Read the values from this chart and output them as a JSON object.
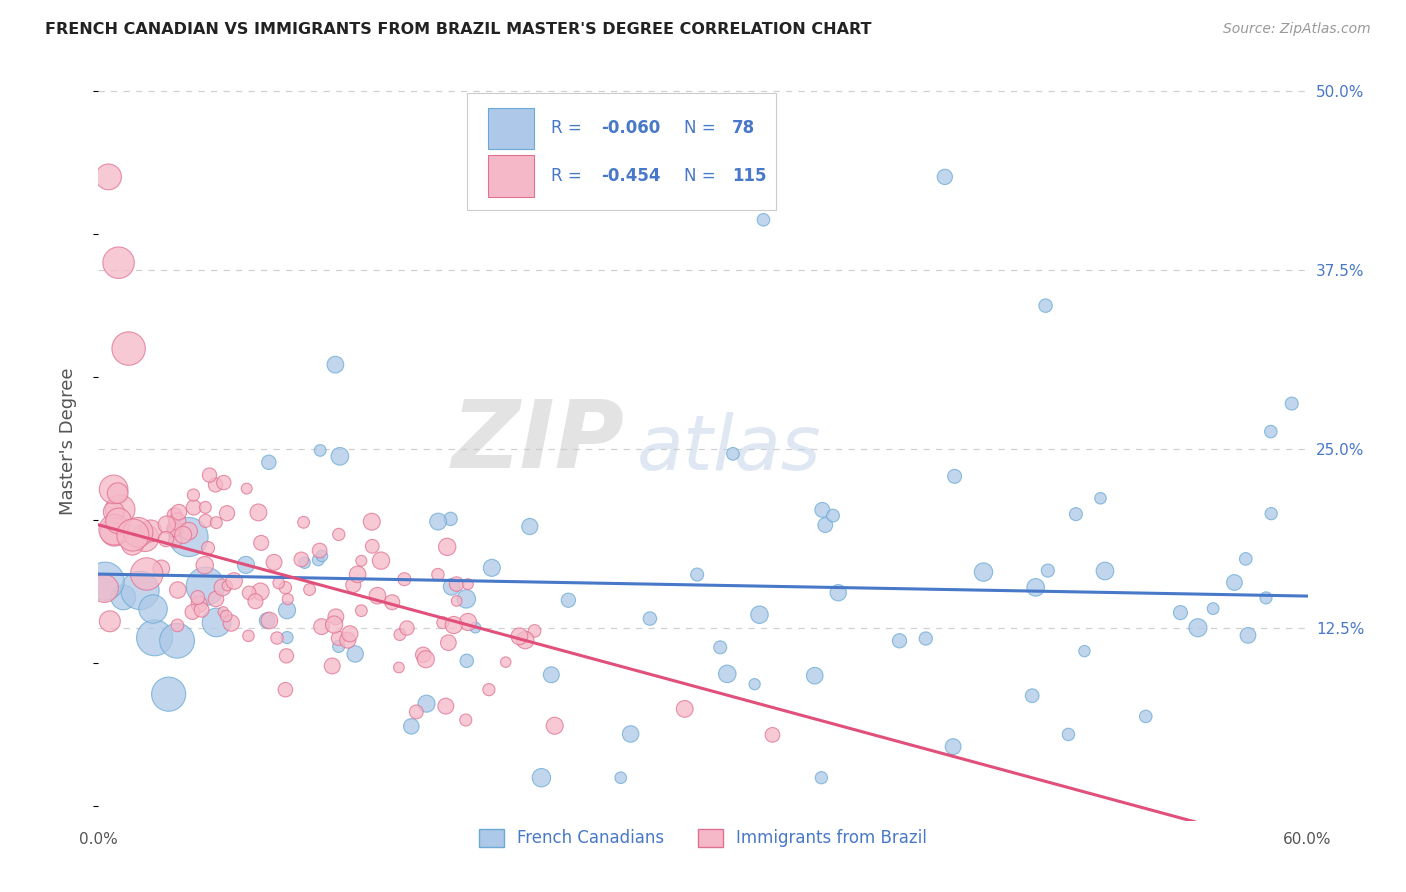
{
  "title": "FRENCH CANADIAN VS IMMIGRANTS FROM BRAZIL MASTER'S DEGREE CORRELATION CHART",
  "source": "Source: ZipAtlas.com",
  "ylabel": "Master's Degree",
  "xlim": [
    0.0,
    0.6
  ],
  "ylim": [
    -0.01,
    0.52
  ],
  "blue_color": "#adc8e8",
  "pink_color": "#f5b8c8",
  "blue_edge_color": "#6aaad4",
  "pink_edge_color": "#e07090",
  "blue_line_color": "#4878c8",
  "pink_line_color": "#e0507a",
  "legend_text_color": "#4878c8",
  "legend_label_blue": "French Canadians",
  "legend_label_pink": "Immigrants from Brazil",
  "watermark_zip": "ZIP",
  "watermark_atlas": "atlas",
  "blue_R": -0.06,
  "blue_N": 78,
  "pink_R": -0.454,
  "pink_N": 115,
  "background_color": "#ffffff",
  "grid_color": "#d0d0d0",
  "title_color": "#222222",
  "axis_label_color": "#555555",
  "ytick_color": "#4878c8",
  "xtick_color": "#555555"
}
